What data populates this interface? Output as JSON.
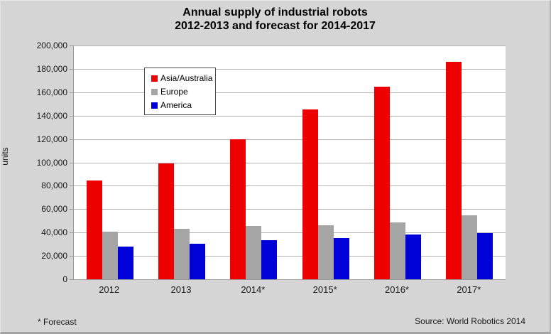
{
  "chart_data": {
    "type": "bar",
    "title": "Annual supply of industrial robots 2012-2013 and forecast for 2014-2017",
    "title_lines": [
      "Annual supply of industrial robots",
      "2012-2013 and forecast for 2014-2017"
    ],
    "categories": [
      "2012",
      "2013",
      "2014*",
      "2015*",
      "2016*",
      "2017*"
    ],
    "series": [
      {
        "name": "Asia/Australia",
        "color": "#ee0000",
        "values": [
          84500,
          98800,
          120000,
          145000,
          165000,
          186000
        ]
      },
      {
        "name": "Europe",
        "color": "#a5a5a5",
        "values": [
          41000,
          43000,
          45500,
          46500,
          48500,
          54500
        ]
      },
      {
        "name": "America",
        "color": "#0000d8",
        "values": [
          28000,
          30300,
          33500,
          35000,
          38000,
          39500
        ]
      }
    ],
    "ylabel": "units",
    "xlabel": "",
    "ylim": [
      0,
      200000
    ],
    "ytick_step": 20000,
    "grid": true,
    "legend_position": "inside-upper-left"
  },
  "footnote": "* Forecast",
  "source": "Source: World Robotics 2014",
  "colors": {
    "background": "#d5d5d5",
    "plot_background": "#ffffff",
    "gridline": "#b3b3b3",
    "axis": "#9a9a9a",
    "text": "#000000",
    "legend_border": "#4d4d4d"
  }
}
